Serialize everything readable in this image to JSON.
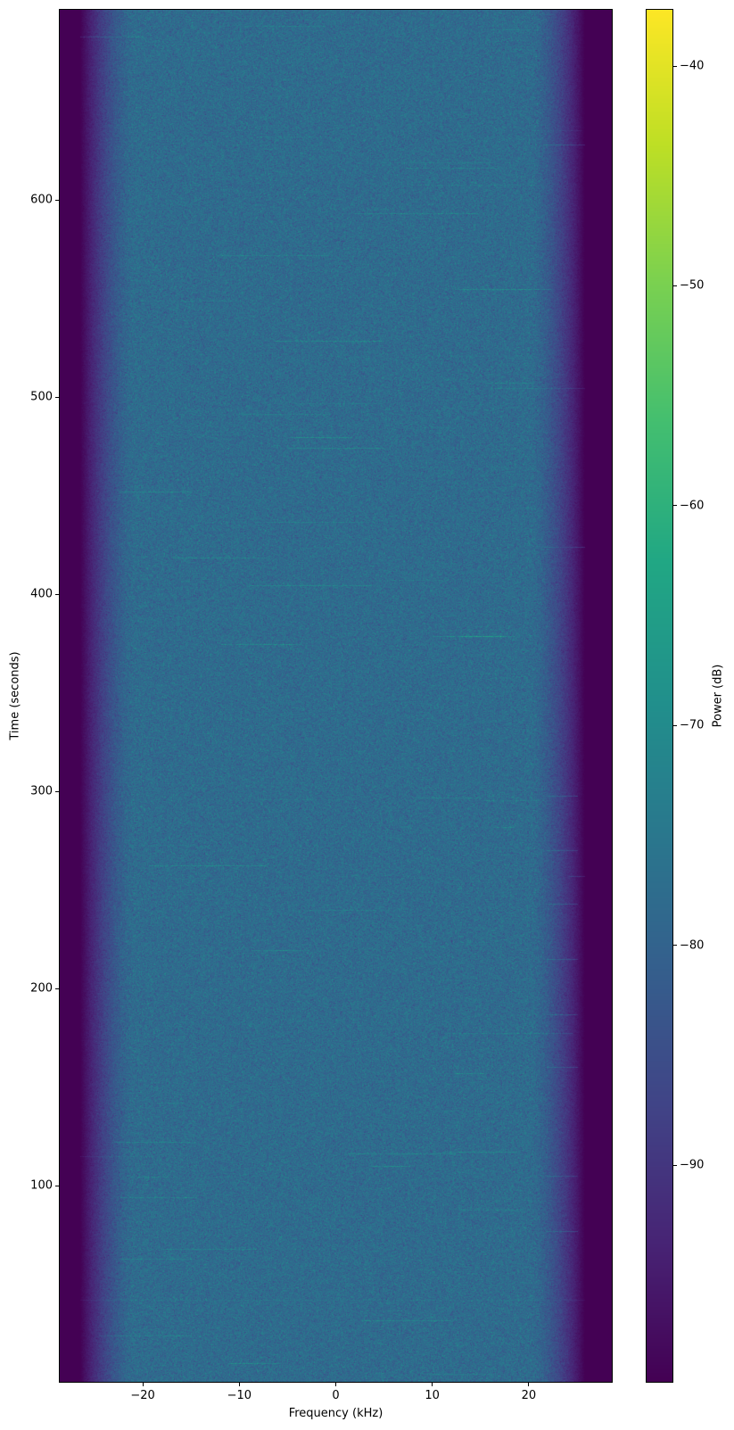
{
  "chart_data": {
    "type": "heatmap",
    "title": "",
    "xlabel": "Frequency (kHz)",
    "ylabel": "Time (seconds)",
    "xlim": [
      -28.7,
      28.7
    ],
    "ylim": [
      0,
      697
    ],
    "xticks": [
      -20,
      -10,
      0,
      10,
      20
    ],
    "xtick_labels": [
      "−20",
      "−10",
      "0",
      "10",
      "20"
    ],
    "yticks": [
      100,
      200,
      300,
      400,
      500,
      600
    ],
    "ytick_labels": [
      "100",
      "200",
      "300",
      "400",
      "500",
      "600"
    ],
    "colormap": "viridis",
    "colorbar": {
      "label": "Power (dB)",
      "range": [
        -99.9,
        -37.4
      ],
      "ticks": [
        -40,
        -50,
        -60,
        -70,
        -80,
        -90
      ],
      "tick_labels": [
        "−40",
        "−50",
        "−60",
        "−70",
        "−80",
        "−90"
      ]
    },
    "passband_level_db": -78,
    "noise_floor_db": -99.9,
    "passband_edges_khz": [
      -26.5,
      25.8
    ],
    "grid": false
  }
}
